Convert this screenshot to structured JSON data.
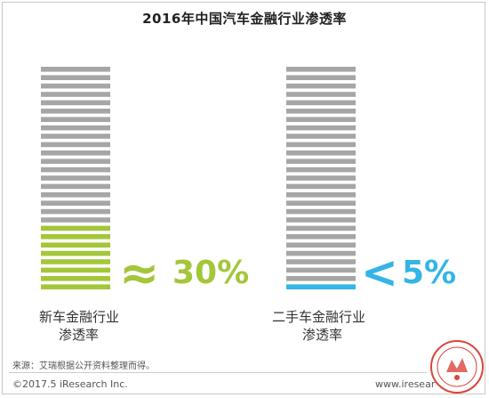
{
  "chart_data": {
    "type": "bar",
    "title": "2016年中国汽车金融行业渗透率",
    "categories": [
      "新车金融行业渗透率",
      "二手车金融行业渗透率"
    ],
    "category_lines": [
      [
        "新车金融行业",
        "渗透率"
      ],
      [
        "二手车金融行业",
        "渗透率"
      ]
    ],
    "values": [
      30,
      5
    ],
    "value_labels": [
      "≈30%",
      "<5%"
    ],
    "value_prefix": [
      "≈",
      "<"
    ],
    "value_text": [
      "30%",
      "5%"
    ],
    "ylim": [
      0,
      100
    ],
    "colors": {
      "empty": "#a6a6a6",
      "series": [
        "#a4c639",
        "#33b5e5"
      ]
    }
  },
  "footer": {
    "source": "来源：艾瑞根据公开资料整理而得。",
    "copyright": "©2017.5 iResearch Inc.",
    "website": "www.iresearch.com.cn"
  }
}
